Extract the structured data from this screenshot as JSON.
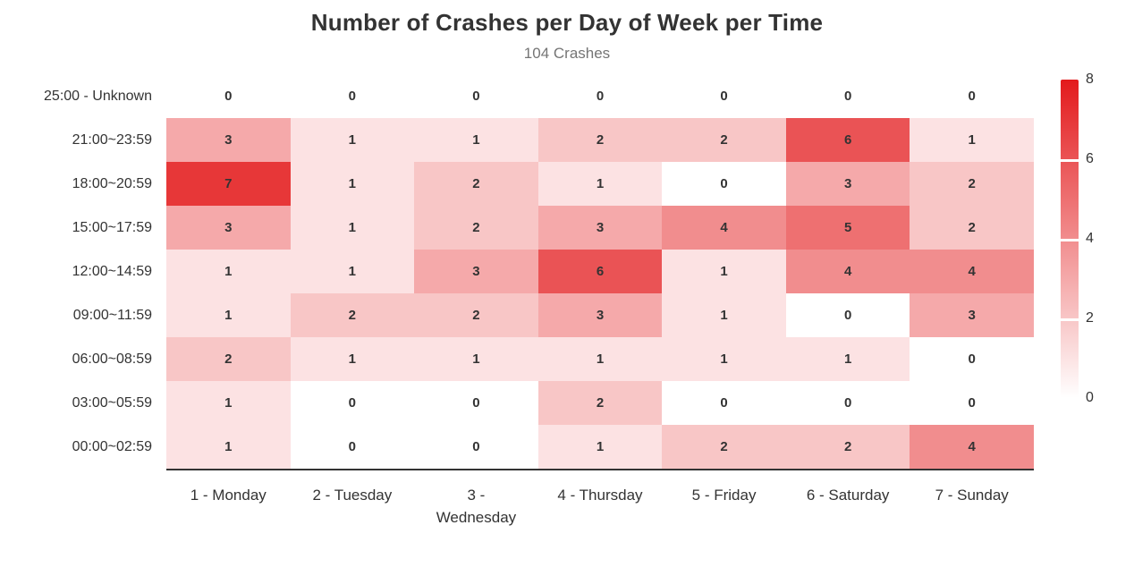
{
  "chart_data": {
    "type": "heatmap",
    "title": "Number of Crashes per Day of Week per Time",
    "subtitle": "104 Crashes",
    "x_categories": [
      "1 - Monday",
      "2 - Tuesday",
      "3 -\nWednesday",
      "4 - Thursday",
      "5 - Friday",
      "6 - Saturday",
      "7 - Sunday"
    ],
    "y_categories_top_to_bottom": [
      "25:00 - Unknown",
      "21:00~23:59",
      "18:00~20:59",
      "15:00~17:59",
      "12:00~14:59",
      "09:00~11:59",
      "06:00~08:59",
      "03:00~05:59",
      "00:00~02:59"
    ],
    "values_rows_top_to_bottom": [
      [
        0,
        0,
        0,
        0,
        0,
        0,
        0
      ],
      [
        3,
        1,
        1,
        2,
        2,
        6,
        1
      ],
      [
        7,
        1,
        2,
        1,
        0,
        3,
        2
      ],
      [
        3,
        1,
        2,
        3,
        4,
        5,
        2
      ],
      [
        1,
        1,
        3,
        6,
        1,
        4,
        4
      ],
      [
        1,
        2,
        2,
        3,
        1,
        0,
        3
      ],
      [
        2,
        1,
        1,
        1,
        1,
        1,
        0
      ],
      [
        1,
        0,
        0,
        2,
        0,
        0,
        0
      ],
      [
        1,
        0,
        0,
        1,
        2,
        2,
        4
      ]
    ],
    "colorscale": {
      "min": 0,
      "max": 8,
      "ticks_top_to_bottom": [
        8,
        6,
        4,
        2,
        0
      ],
      "min_color": "#ffffff",
      "max_color": "#e31a1c",
      "position": "right"
    },
    "legend_on": true,
    "grid_on": false
  },
  "colors": {
    "title_text": "#333333",
    "subtitle_text": "#757575",
    "axis_text": "#333333",
    "cell_text": "#333333",
    "axis_line": "#333333"
  }
}
